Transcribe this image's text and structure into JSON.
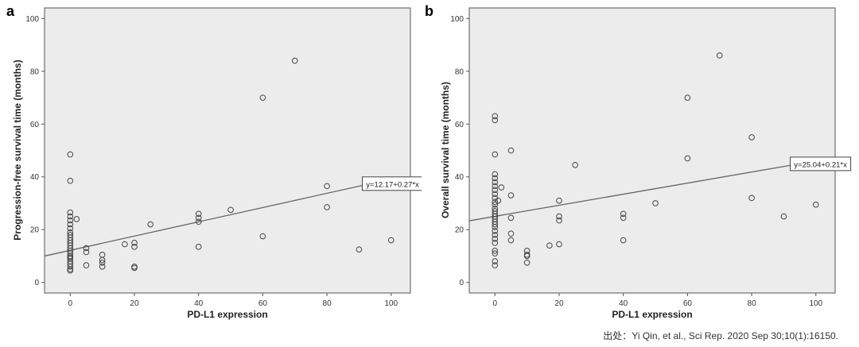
{
  "chart_data": [
    {
      "id": "a",
      "type": "scatter",
      "panel_label": "a",
      "xlabel": "PD-L1 expression",
      "ylabel": "Progression-free survival time (months)",
      "xlim": [
        -8,
        106
      ],
      "ylim": [
        -4,
        104
      ],
      "xticks": [
        0,
        20,
        40,
        60,
        80,
        100
      ],
      "yticks": [
        0,
        20,
        40,
        60,
        80,
        100
      ],
      "fit": {
        "intercept": 12.17,
        "slope": 0.27,
        "label": "y=12.17+0.27*x",
        "label_x": 93
      },
      "points": [
        [
          0,
          48.5
        ],
        [
          0,
          38.5
        ],
        [
          0,
          26.5
        ],
        [
          0,
          25
        ],
        [
          0,
          23.5
        ],
        [
          0,
          22
        ],
        [
          0,
          20.5
        ],
        [
          0,
          19
        ],
        [
          0,
          18
        ],
        [
          0,
          17
        ],
        [
          0,
          16
        ],
        [
          0,
          15
        ],
        [
          0,
          14
        ],
        [
          0,
          13
        ],
        [
          0,
          12
        ],
        [
          0,
          11
        ],
        [
          0,
          10
        ],
        [
          0,
          9.5
        ],
        [
          0,
          9
        ],
        [
          0,
          8
        ],
        [
          0,
          7
        ],
        [
          0,
          6
        ],
        [
          0,
          5
        ],
        [
          0,
          4.5
        ],
        [
          2,
          24
        ],
        [
          5,
          13
        ],
        [
          5,
          11.5
        ],
        [
          5,
          6.5
        ],
        [
          10,
          10.5
        ],
        [
          10,
          8.5
        ],
        [
          10,
          7.5
        ],
        [
          10,
          6
        ],
        [
          17,
          14.5
        ],
        [
          20,
          15
        ],
        [
          20,
          13.5
        ],
        [
          20,
          6
        ],
        [
          20,
          5.5
        ],
        [
          25,
          22
        ],
        [
          40,
          26
        ],
        [
          40,
          24.5
        ],
        [
          40,
          23
        ],
        [
          40,
          13.5
        ],
        [
          50,
          27.5
        ],
        [
          60,
          70
        ],
        [
          60,
          17.5
        ],
        [
          70,
          84
        ],
        [
          80,
          36.5
        ],
        [
          80,
          28.5
        ],
        [
          90,
          12.5
        ],
        [
          100,
          16
        ]
      ]
    },
    {
      "id": "b",
      "type": "scatter",
      "panel_label": "b",
      "xlabel": "PD-L1 expression",
      "ylabel": "Overall survival time (months)",
      "xlim": [
        -8,
        106
      ],
      "ylim": [
        -4,
        104
      ],
      "xticks": [
        0,
        20,
        40,
        60,
        80,
        100
      ],
      "yticks": [
        0,
        20,
        40,
        60,
        80,
        100
      ],
      "fit": {
        "intercept": 25.04,
        "slope": 0.21,
        "label": "y=25.04+0.21*x",
        "label_x": 94
      },
      "points": [
        [
          0,
          63
        ],
        [
          0,
          61.5
        ],
        [
          0,
          48.5
        ],
        [
          0,
          41
        ],
        [
          0,
          39.5
        ],
        [
          0,
          38
        ],
        [
          0,
          36.5
        ],
        [
          0,
          35
        ],
        [
          0,
          33.5
        ],
        [
          0,
          32
        ],
        [
          0,
          30.5
        ],
        [
          0,
          29.5
        ],
        [
          0,
          28
        ],
        [
          0,
          27
        ],
        [
          0,
          26
        ],
        [
          0,
          25
        ],
        [
          0,
          24
        ],
        [
          0,
          23
        ],
        [
          0,
          22
        ],
        [
          0,
          21
        ],
        [
          0,
          19.5
        ],
        [
          0,
          18
        ],
        [
          0,
          16.5
        ],
        [
          0,
          15
        ],
        [
          0,
          12
        ],
        [
          0,
          11
        ],
        [
          0,
          8
        ],
        [
          0,
          6.5
        ],
        [
          1,
          31
        ],
        [
          2,
          36
        ],
        [
          5,
          50
        ],
        [
          5,
          33
        ],
        [
          5,
          24.5
        ],
        [
          5,
          18.5
        ],
        [
          5,
          16
        ],
        [
          10,
          12
        ],
        [
          10,
          10.5
        ],
        [
          10,
          10
        ],
        [
          10,
          7.5
        ],
        [
          17,
          14
        ],
        [
          20,
          31
        ],
        [
          20,
          25
        ],
        [
          20,
          23.5
        ],
        [
          20,
          14.5
        ],
        [
          25,
          44.5
        ],
        [
          40,
          26
        ],
        [
          40,
          24.5
        ],
        [
          40,
          16
        ],
        [
          50,
          30
        ],
        [
          60,
          70
        ],
        [
          60,
          47
        ],
        [
          70,
          86
        ],
        [
          80,
          55
        ],
        [
          80,
          32
        ],
        [
          90,
          25
        ],
        [
          100,
          29.5
        ]
      ]
    }
  ],
  "source_text": "出处：Yi Qin, et al., Sci Rep. 2020 Sep 30;10(1):16150."
}
